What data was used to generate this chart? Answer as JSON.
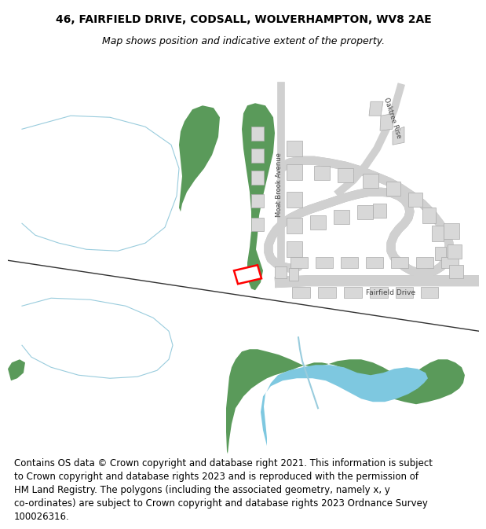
{
  "title": "46, FAIRFIELD DRIVE, CODSALL, WOLVERHAMPTON, WV8 2AE",
  "subtitle": "Map shows position and indicative extent of the property.",
  "footer": "Contains OS data © Crown copyright and database right 2021. This information is subject\nto Crown copyright and database rights 2023 and is reproduced with the permission of\nHM Land Registry. The polygons (including the associated geometry, namely x, y\nco-ordinates) are subject to Crown copyright and database rights 2023 Ordnance Survey\n100026316.",
  "title_fontsize": 10,
  "subtitle_fontsize": 9,
  "footer_fontsize": 8.5,
  "map_bg": "#f8f8f8",
  "green_color": "#5a9a5a",
  "blue_color": "#7ec8e0",
  "building_color": "#d8d8d8",
  "building_edge": "#aaaaaa",
  "highlight_color": "#ff0000",
  "water_color": "#7ec8e0",
  "light_blue_line": "#99ccdd",
  "road_dark": "#444444",
  "road_fill": "#d0d0d0"
}
